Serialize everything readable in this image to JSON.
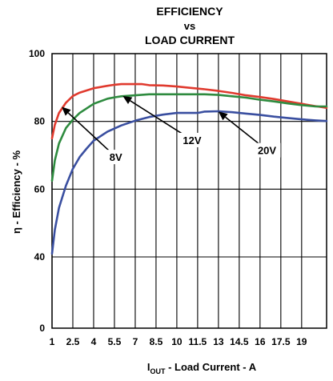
{
  "chart_data": {
    "type": "line",
    "title_lines": [
      "EFFICIENCY",
      "vs",
      "LOAD CURRENT"
    ],
    "ylabel": "η - Efficiency - %",
    "xlabel_prefix": "I",
    "xlabel_subscript": "OUT",
    "xlabel_suffix": " - Load Current - A",
    "x_ticks": [
      1,
      2.5,
      4,
      5.5,
      7,
      8.5,
      10,
      11.5,
      13,
      14.5,
      16,
      17.5,
      19
    ],
    "x_tick_labels": [
      "1",
      "2.5",
      "4",
      "5.5",
      "7",
      "8.5",
      "10",
      "11.5",
      "13",
      "14.5",
      "16",
      "17.5",
      "19"
    ],
    "y_ticks": [
      0,
      40,
      60,
      80,
      100
    ],
    "y_tick_labels": [
      "0",
      "40",
      "60",
      "80",
      "100"
    ],
    "xlim": [
      1,
      20.8
    ],
    "grid": true,
    "series": [
      {
        "name": "8V",
        "color": "#e03a2e",
        "x": [
          1,
          1.2,
          1.5,
          2,
          2.5,
          3,
          4,
          5,
          5.5,
          6,
          7,
          7.5,
          8,
          9,
          10,
          11,
          12,
          13,
          14,
          15,
          16,
          17,
          18,
          19,
          20,
          20.8
        ],
        "y": [
          75,
          79,
          82.5,
          85.5,
          87.5,
          88.5,
          89.8,
          90.5,
          90.8,
          91,
          91,
          91,
          90.7,
          90.6,
          90.3,
          89.9,
          89.5,
          89,
          88.4,
          87.7,
          87.2,
          86.6,
          85.9,
          85.2,
          84.5,
          84
        ]
      },
      {
        "name": "12V",
        "color": "#2e8b3f",
        "x": [
          1,
          1.2,
          1.5,
          2,
          2.5,
          3,
          4,
          5,
          5.5,
          6,
          7,
          8,
          9,
          10,
          11,
          12,
          13,
          14,
          15,
          16,
          17,
          18,
          19,
          20,
          20.8
        ],
        "y": [
          62.5,
          68.5,
          73.5,
          78,
          80.5,
          82.5,
          85.2,
          86.7,
          87.1,
          87.4,
          87.7,
          88,
          88,
          88,
          88,
          88,
          87.8,
          87.4,
          87,
          86.4,
          85.9,
          85.3,
          84.8,
          84.4,
          84.4
        ]
      },
      {
        "name": "20V",
        "color": "#3a4fa0",
        "x": [
          1,
          1.2,
          1.5,
          2,
          2.5,
          3,
          3.5,
          4,
          5,
          6,
          7,
          8,
          9,
          10,
          11,
          11.5,
          12,
          13,
          14,
          15,
          16,
          17,
          18,
          19,
          20,
          20.8
        ],
        "y": [
          41,
          48,
          54.5,
          61,
          66,
          69.5,
          72,
          74.3,
          77,
          78.8,
          80.2,
          81.3,
          82,
          82.5,
          82.5,
          82.5,
          82.9,
          83,
          82.7,
          82.3,
          81.9,
          81.4,
          81,
          80.6,
          80.3,
          80.1
        ]
      }
    ],
    "annotations": [
      {
        "label": "8V",
        "x": 5.6,
        "y": 69.5,
        "target_x": 1.7,
        "target_y": 84.3
      },
      {
        "label": "12V",
        "x": 11.1,
        "y": 74.5,
        "target_x": 6.1,
        "target_y": 87.5
      },
      {
        "label": "20V",
        "x": 16.5,
        "y": 71.5,
        "target_x": 13.0,
        "target_y": 82.9
      }
    ]
  }
}
